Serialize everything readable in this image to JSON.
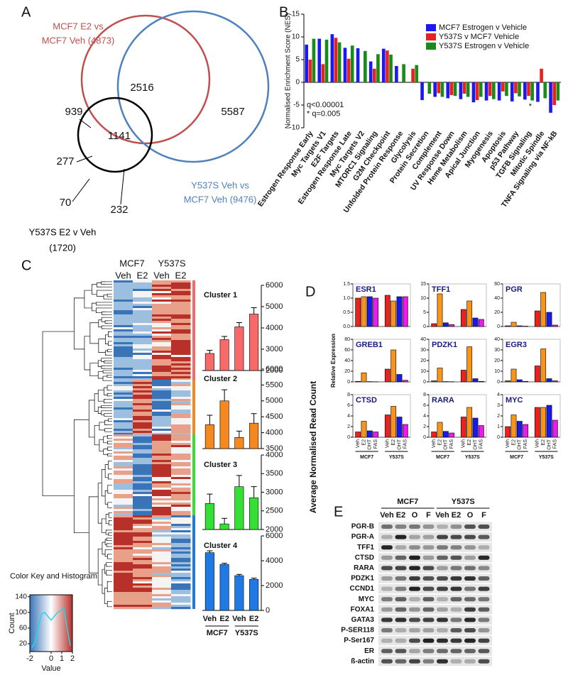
{
  "panel_labels": [
    "A",
    "B",
    "C",
    "D",
    "E"
  ],
  "venn": {
    "sets": [
      {
        "lines": [
          "MCF7 E2 vs",
          "MCF7 Veh (4873)"
        ],
        "color": "#c0504d"
      },
      {
        "lines": [
          "Y537S Veh vs",
          "MCF7 Veh (9476)"
        ],
        "color": "#4f81bd"
      },
      {
        "lines": [
          "Y537S E2 v Veh",
          "(1720)"
        ],
        "color": "#000000"
      }
    ],
    "counts": [
      939,
      2516,
      5587,
      277,
      1141,
      70,
      232
    ]
  },
  "heatmap": {
    "groups": [
      "MCF7",
      "Y537S"
    ],
    "columns": [
      "Veh",
      "E2",
      "Veh",
      "E2"
    ],
    "ylabel": "Average Normalised Read Count"
  },
  "qpcr": {
    "ylabel": "Relative Expression"
  },
  "western": {
    "groups": [
      "MCF7",
      "Y537S"
    ],
    "lanes": [
      "Veh",
      "E2",
      "O",
      "F",
      "Veh",
      "E2",
      "O",
      "F"
    ],
    "rows": [
      "PGR-B",
      "PGR-A",
      "TFF1",
      "CTSD",
      "RARA",
      "PDZK1",
      "CCND1",
      "MYC",
      "FOXA1",
      "GATA3",
      "P-SER118",
      "P-Ser167",
      "ER",
      "ß-actin"
    ]
  },
  "chart_data": [
    {
      "type": "grouped",
      "ylabel": "Normalised Enrichment Score (NES)",
      "annotations": [
        "q<0.00001",
        "* q=0.005",
        "*"
      ],
      "categories": [
        "Estrogen Response Early",
        "Myc Targets V1",
        "E2F Targets",
        "Estrogen Response Late",
        "Myc Targets V2",
        "MTORC1 Signaling",
        "G2M Checkpoint",
        "Unfolded Protein Response",
        "Glycolysis",
        "Protein Secretion",
        "Complement",
        "UV Response Down",
        "Heme Metabolism",
        "Apical Junction",
        "Myogenesis",
        "Apoptosis",
        "p53 Pathway",
        "TGFB Signaling",
        "Mitotic Spindle",
        "TNFA Signaling via NF-kB"
      ],
      "series": [
        {
          "name": "MCF7 Estrogen v Vehicle",
          "color": "#1a1af0",
          "values": [
            8.3,
            9.6,
            10.6,
            7.6,
            7.5,
            4.6,
            7.4,
            3.6,
            0,
            -3.9,
            -3.2,
            -3.5,
            -3.7,
            -4.4,
            -4,
            -4,
            -4.2,
            -3.8,
            -4.3,
            -6.7
          ]
        },
        {
          "name": "Y537S v MCF7 Vehicle",
          "color": "#e8231f",
          "values": [
            5,
            4,
            9.8,
            5.2,
            0,
            3,
            7,
            0,
            3,
            0,
            -2.4,
            -2.8,
            -2.5,
            -3.9,
            -3,
            -2,
            -2.4,
            -3,
            3,
            -5
          ]
        },
        {
          "name": "Y537S Estrogen v Vehicle",
          "color": "#1a8a1a",
          "values": [
            9.6,
            9.4,
            8.8,
            8.1,
            6.9,
            6.2,
            6.1,
            4,
            3.8,
            -2.5,
            -3.2,
            -3,
            -3.2,
            -3.2,
            -3.7,
            -3,
            -3.1,
            -4,
            -3.5,
            -4
          ]
        }
      ],
      "ylim": [
        -10,
        15
      ],
      "yticks": [
        -10,
        -5,
        0,
        5,
        10,
        15
      ],
      "legend": "top-right"
    },
    {
      "type": "bar",
      "title": "Cluster 1",
      "color": "#f86a6a",
      "values": [
        2800,
        3450,
        4050,
        4650
      ],
      "errors": [
        150,
        150,
        200,
        300
      ],
      "ylim": [
        2000,
        6000
      ],
      "yticks": [
        2000,
        3000,
        4000,
        5000,
        6000
      ]
    },
    {
      "type": "bar",
      "title": "Cluster 2",
      "color": "#f5891f",
      "values": [
        4250,
        5000,
        3850,
        4300
      ],
      "errors": [
        300,
        350,
        200,
        300
      ],
      "ylim": [
        3500,
        6000
      ],
      "yticks": [
        3500,
        4000,
        4500,
        5000,
        5500,
        6000
      ]
    },
    {
      "type": "bar",
      "title": "Cluster 3",
      "color": "#33e033",
      "values": [
        2700,
        2150,
        3150,
        2850
      ],
      "errors": [
        250,
        150,
        300,
        300
      ],
      "ylim": [
        2000,
        4000
      ],
      "yticks": [
        2000,
        2500,
        3000,
        3500,
        4000
      ]
    },
    {
      "type": "bar",
      "title": "Cluster 4",
      "color": "#1f7ae6",
      "values": [
        4650,
        3700,
        2800,
        2500
      ],
      "errors": [
        150,
        100,
        100,
        100
      ],
      "ylim": [
        0,
        6000
      ],
      "yticks": [
        0,
        2000,
        4000,
        6000
      ],
      "categories": [
        "Veh",
        "E2",
        "Veh",
        "E2"
      ],
      "groups": [
        "MCF7",
        "Y537S"
      ]
    },
    {
      "type": "bar",
      "title": "ESR1",
      "colors": [
        "#e8231f",
        "#f7941d",
        "#1a1ae6",
        "#e61ee6"
      ],
      "values": [
        1.0,
        1.05,
        1.05,
        1.0,
        1.1,
        0.9,
        1.05,
        1.05
      ],
      "ylim": [
        0,
        1.5
      ],
      "yticks": [
        {
          "value": 0,
          "label": "0.0"
        },
        {
          "value": 0.5,
          "label": "0.5"
        },
        {
          "value": 1,
          "label": "1.0"
        },
        {
          "value": 1.5,
          "label": "1.5"
        }
      ]
    },
    {
      "type": "bar",
      "title": "TFF1",
      "colors": [
        "#e8231f",
        "#f7941d",
        "#1a1ae6",
        "#e61ee6"
      ],
      "values": [
        1,
        11.5,
        1.3,
        0.7,
        6,
        9,
        3,
        2.5
      ],
      "ylim": [
        0,
        15
      ],
      "yticks": [
        0,
        5,
        10,
        15
      ]
    },
    {
      "type": "bar",
      "title": "PGR",
      "colors": [
        "#e8231f",
        "#f7941d",
        "#1a1ae6",
        "#e61ee6"
      ],
      "values": [
        1,
        6,
        1,
        0.5,
        22,
        48,
        20,
        2
      ],
      "ylim": [
        0,
        60
      ],
      "yticks": [
        0,
        20,
        40,
        60
      ]
    },
    {
      "type": "bar",
      "title": "GREB1",
      "colors": [
        "#e8231f",
        "#f7941d",
        "#1a1ae6",
        "#e61ee6"
      ],
      "values": [
        1,
        17,
        0.5,
        0.3,
        24,
        60,
        14,
        3
      ],
      "ylim": [
        0,
        80
      ],
      "yticks": [
        0,
        20,
        40,
        60,
        80
      ]
    },
    {
      "type": "bar",
      "title": "PDZK1",
      "colors": [
        "#e8231f",
        "#f7941d",
        "#1a1ae6",
        "#e61ee6"
      ],
      "values": [
        1,
        13,
        0.3,
        0.2,
        11,
        33,
        3,
        0.5
      ],
      "ylim": [
        0,
        40
      ],
      "yticks": [
        0,
        10,
        20,
        30,
        40
      ]
    },
    {
      "type": "bar",
      "title": "EGR3",
      "colors": [
        "#e8231f",
        "#f7941d",
        "#1a1ae6",
        "#e61ee6"
      ],
      "values": [
        1,
        12,
        2,
        0.5,
        15,
        31,
        3,
        1
      ],
      "ylim": [
        0,
        40
      ],
      "yticks": [
        0,
        10,
        20,
        30,
        40
      ]
    },
    {
      "type": "bar",
      "title": "CTSD",
      "colors": [
        "#e8231f",
        "#f7941d",
        "#1a1ae6",
        "#e61ee6"
      ],
      "values": [
        1,
        3,
        1.2,
        1,
        4.2,
        5.8,
        3.8,
        2.4
      ],
      "ylim": [
        0,
        8
      ],
      "yticks": [
        0,
        2,
        4,
        6,
        8
      ],
      "categories": [
        "Veh",
        "E2",
        "OHT",
        "FAS",
        "Veh",
        "E2",
        "OHT",
        "FAS"
      ],
      "groups": [
        "MCF7",
        "Y537S"
      ]
    },
    {
      "type": "bar",
      "title": "RARA",
      "colors": [
        "#e8231f",
        "#f7941d",
        "#1a1ae6",
        "#e61ee6"
      ],
      "values": [
        1,
        2.8,
        1.1,
        0.8,
        3.8,
        5.6,
        3.6,
        2.2
      ],
      "ylim": [
        0,
        8
      ],
      "yticks": [
        0,
        2,
        4,
        6,
        8
      ],
      "categories": [
        "Veh",
        "E2",
        "OHT",
        "FAS",
        "Veh",
        "E2",
        "OHT",
        "FAS"
      ],
      "groups": [
        "MCF7",
        "Y537S"
      ]
    },
    {
      "type": "bar",
      "title": "MYC",
      "colors": [
        "#e8231f",
        "#f7941d",
        "#1a1ae6",
        "#e61ee6"
      ],
      "values": [
        1,
        2.1,
        1.5,
        1.2,
        2.8,
        2.8,
        3,
        1.6
      ],
      "ylim": [
        0,
        4
      ],
      "yticks": [
        0,
        1,
        2,
        3,
        4
      ],
      "categories": [
        "Veh",
        "E2",
        "OHT",
        "FAS",
        "Veh",
        "E2",
        "OHT",
        "FAS"
      ],
      "groups": [
        "MCF7",
        "Y537S"
      ]
    },
    {
      "type": "line",
      "title": "Color Key and Histogram",
      "xlabel": "Value",
      "ylabel": "Count",
      "color": "#22d8e8",
      "x": [
        -1.8,
        -1.5,
        -1.2,
        -0.9,
        -0.6,
        -0.3,
        0,
        0.3,
        0.6,
        0.9,
        1.2,
        1.5,
        1.8
      ],
      "values": [
        10,
        25,
        60,
        95,
        100,
        90,
        80,
        90,
        100,
        105,
        110,
        60,
        15
      ],
      "xlim": [
        -2,
        2
      ],
      "ylim": [
        0,
        145
      ],
      "xticks": [
        -2,
        0,
        1,
        2
      ],
      "yticks": [
        20,
        60,
        100,
        140
      ]
    }
  ]
}
